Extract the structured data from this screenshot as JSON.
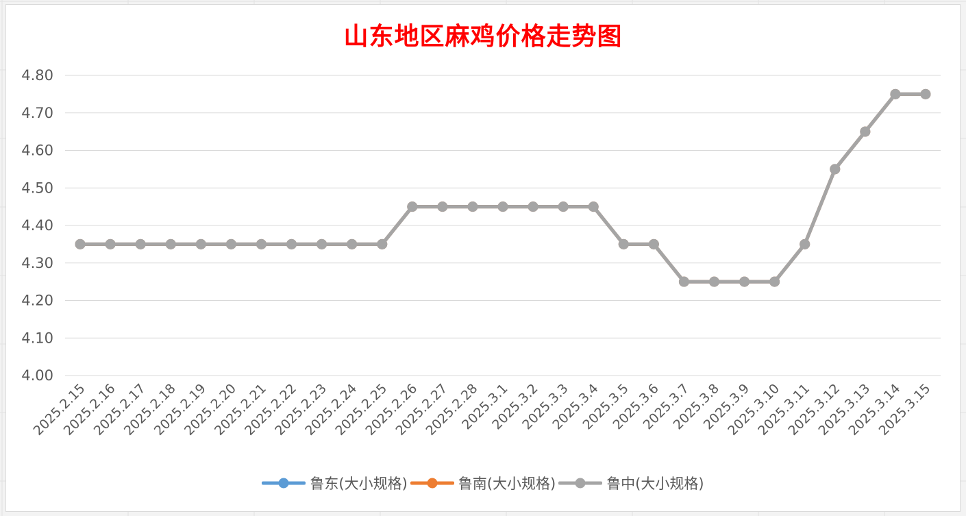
{
  "chart_data": {
    "type": "line",
    "title": "山东地区麻鸡价格走势图",
    "xlabel": "",
    "ylabel": "",
    "ylim": [
      4.0,
      4.8
    ],
    "ytick_step": 0.1,
    "yticks": [
      "4.00",
      "4.10",
      "4.20",
      "4.30",
      "4.40",
      "4.50",
      "4.60",
      "4.70",
      "4.80"
    ],
    "grid": true,
    "legend_position": "bottom",
    "categories": [
      "2025.2.15",
      "2025.2.16",
      "2025.2.17",
      "2025.2.18",
      "2025.2.19",
      "2025.2.20",
      "2025.2.21",
      "2025.2.22",
      "2025.2.23",
      "2025.2.24",
      "2025.2.25",
      "2025.2.26",
      "2025.2.27",
      "2025.2.28",
      "2025.3.1",
      "2025.3.2",
      "2025.3.3",
      "2025.3.4",
      "2025.3.5",
      "2025.3.6",
      "2025.3.7",
      "2025.3.8",
      "2025.3.9",
      "2025.3.10",
      "2025.3.11",
      "2025.3.12",
      "2025.3.13",
      "2025.3.14",
      "2025.3.15"
    ],
    "series": [
      {
        "name": "鲁东(大小规格)",
        "color": "#5b9bd5",
        "values": [
          4.35,
          4.35,
          4.35,
          4.35,
          4.35,
          4.35,
          4.35,
          4.35,
          4.35,
          4.35,
          4.35,
          4.45,
          4.45,
          4.45,
          4.45,
          4.45,
          4.45,
          4.45,
          4.35,
          4.35,
          4.25,
          4.25,
          4.25,
          4.25,
          4.35,
          4.55,
          4.65,
          4.75,
          4.75
        ]
      },
      {
        "name": "鲁南(大小规格)",
        "color": "#ed7d31",
        "values": [
          4.35,
          4.35,
          4.35,
          4.35,
          4.35,
          4.35,
          4.35,
          4.35,
          4.35,
          4.35,
          4.35,
          4.45,
          4.45,
          4.45,
          4.45,
          4.45,
          4.45,
          4.45,
          4.35,
          4.35,
          4.25,
          4.25,
          4.25,
          4.25,
          4.35,
          4.55,
          4.65,
          4.75,
          4.75
        ]
      },
      {
        "name": "鲁中(大小规格)",
        "color": "#a5a5a5",
        "values": [
          4.35,
          4.35,
          4.35,
          4.35,
          4.35,
          4.35,
          4.35,
          4.35,
          4.35,
          4.35,
          4.35,
          4.45,
          4.45,
          4.45,
          4.45,
          4.45,
          4.45,
          4.45,
          4.35,
          4.35,
          4.25,
          4.25,
          4.25,
          4.25,
          4.35,
          4.55,
          4.65,
          4.75,
          4.75
        ]
      }
    ]
  }
}
